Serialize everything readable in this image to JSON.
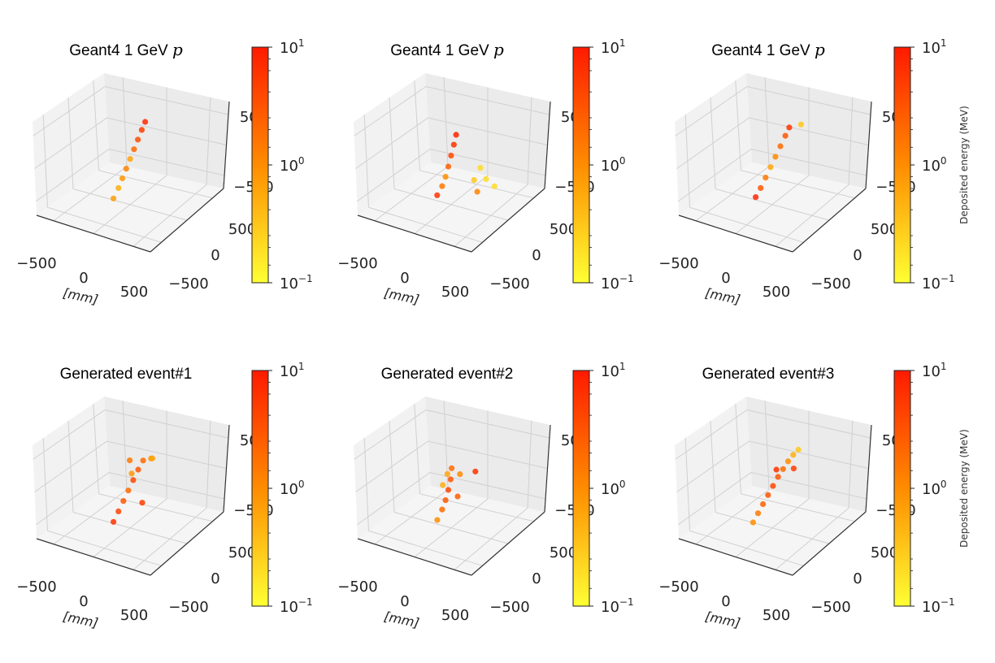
{
  "chart_data": [
    {
      "type": "scatter3d",
      "title": "Geant4 1 GeV ",
      "title_symbol": "p",
      "ticks": {
        "x": [
          "−500",
          "0",
          "500"
        ],
        "y": [
          "−500",
          "0",
          "500"
        ],
        "z": [
          "−500",
          "500"
        ]
      },
      "xlabel": "[mm]",
      "colorbar": {
        "scale": "log",
        "range": [
          0.1,
          10
        ],
        "ticks": [
          "10",
          "10",
          "10"
        ],
        "exponents": [
          "1",
          "0",
          "−1"
        ],
        "label": ""
      },
      "points": [
        {
          "x": 0,
          "y": -300,
          "z": -400,
          "e": 0.7
        },
        {
          "x": 0,
          "y": -200,
          "z": -300,
          "e": 0.5
        },
        {
          "x": 0,
          "y": -120,
          "z": -200,
          "e": 0.8
        },
        {
          "x": 0,
          "y": -40,
          "z": -100,
          "e": 1.2
        },
        {
          "x": 0,
          "y": 40,
          "z": 0,
          "e": 0.6
        },
        {
          "x": 0,
          "y": 120,
          "z": 100,
          "e": 2.0
        },
        {
          "x": 0,
          "y": 200,
          "z": 200,
          "e": 3.5
        },
        {
          "x": 0,
          "y": 280,
          "z": 300,
          "e": 5.0
        },
        {
          "x": 0,
          "y": 350,
          "z": 380,
          "e": 7.0
        }
      ]
    },
    {
      "type": "scatter3d",
      "title": "Geant4 1 GeV ",
      "title_symbol": "p",
      "ticks": {
        "x": [
          "−500",
          "0",
          "500"
        ],
        "y": [
          "−500",
          "0",
          "500"
        ],
        "z": [
          "−500",
          "500"
        ]
      },
      "xlabel": "[mm]",
      "colorbar": {
        "scale": "log",
        "range": [
          0.1,
          10
        ],
        "ticks": [
          "10",
          "10",
          "10"
        ],
        "exponents": [
          "1",
          "0",
          "−1"
        ],
        "label": ""
      },
      "points": [
        {
          "x": 0,
          "y": -250,
          "z": -380,
          "e": 6.0
        },
        {
          "x": 0,
          "y": -150,
          "z": -300,
          "e": 1.5
        },
        {
          "x": 0,
          "y": -80,
          "z": -200,
          "e": 1.0
        },
        {
          "x": 0,
          "y": -20,
          "z": -80,
          "e": 2.5
        },
        {
          "x": 0,
          "y": 40,
          "z": 50,
          "e": 4.0
        },
        {
          "x": 0,
          "y": 100,
          "z": 180,
          "e": 6.0
        },
        {
          "x": 0,
          "y": 150,
          "z": 300,
          "e": 8.0
        },
        {
          "x": 200,
          "y": 150,
          "z": -300,
          "e": 0.3
        },
        {
          "x": 250,
          "y": 300,
          "z": -350,
          "e": 0.2
        },
        {
          "x": 350,
          "y": 300,
          "z": -420,
          "e": 0.2
        },
        {
          "x": 150,
          "y": 350,
          "z": -250,
          "e": 0.2
        },
        {
          "x": 300,
          "y": 50,
          "z": -380,
          "e": 1.2
        }
      ]
    },
    {
      "type": "scatter3d",
      "title": "Geant4 1 GeV ",
      "title_symbol": "p",
      "ticks": {
        "x": [
          "−500",
          "0",
          "500"
        ],
        "y": [
          "−500",
          "0",
          "500"
        ],
        "z": [
          "−500",
          "500"
        ]
      },
      "xlabel": "[mm]",
      "colorbar": {
        "scale": "log",
        "range": [
          0.1,
          10
        ],
        "ticks": [
          "10",
          "10",
          "10"
        ],
        "exponents": [
          "1",
          "0",
          "−1"
        ],
        "label": "Deposited energy (MeV)"
      },
      "points": [
        {
          "x": 0,
          "y": -300,
          "z": -380,
          "e": 8.0
        },
        {
          "x": 0,
          "y": -200,
          "z": -300,
          "e": 3.0
        },
        {
          "x": 0,
          "y": -100,
          "z": -200,
          "e": 1.5
        },
        {
          "x": 0,
          "y": 0,
          "z": -100,
          "e": 0.6
        },
        {
          "x": 0,
          "y": 100,
          "z": 0,
          "e": 1.0
        },
        {
          "x": 0,
          "y": 200,
          "z": 100,
          "e": 2.0
        },
        {
          "x": 0,
          "y": 300,
          "z": 200,
          "e": 3.0
        },
        {
          "x": 0,
          "y": 380,
          "z": 280,
          "e": 6.0
        },
        {
          "x": 0,
          "y": 600,
          "z": 200,
          "e": 0.3
        }
      ]
    },
    {
      "type": "scatter3d",
      "title": "Generated event#1",
      "title_symbol": "",
      "ticks": {
        "x": [
          "−500",
          "0",
          "500"
        ],
        "y": [
          "−500",
          "0",
          "500"
        ],
        "z": [
          "−500",
          "500"
        ]
      },
      "xlabel": "[mm]",
      "colorbar": {
        "scale": "log",
        "range": [
          0.1,
          10
        ],
        "ticks": [
          "10",
          "10",
          "10"
        ],
        "exponents": [
          "1",
          "0",
          "−1"
        ],
        "label": ""
      },
      "points": [
        {
          "x": 0,
          "y": -300,
          "z": -400,
          "e": 6.0
        },
        {
          "x": 0,
          "y": -200,
          "z": -300,
          "e": 4.0
        },
        {
          "x": 0,
          "y": -100,
          "z": -200,
          "e": 3.0
        },
        {
          "x": 0,
          "y": 0,
          "z": -100,
          "e": 2.0
        },
        {
          "x": 0,
          "y": 100,
          "z": 0,
          "e": 4.0
        },
        {
          "x": 0,
          "y": 200,
          "z": 100,
          "e": 3.0
        },
        {
          "x": 0,
          "y": 300,
          "z": 180,
          "e": 2.0
        },
        {
          "x": 100,
          "y": 300,
          "z": 250,
          "e": 1.0
        },
        {
          "x": 150,
          "y": 250,
          "z": 300,
          "e": 0.6
        },
        {
          "x": -100,
          "y": 200,
          "z": 200,
          "e": 1.5
        },
        {
          "x": 100,
          "y": 100,
          "z": -300,
          "e": 5.0
        },
        {
          "x": -50,
          "y": 150,
          "z": 50,
          "e": 0.8
        }
      ]
    },
    {
      "type": "scatter3d",
      "title": "Generated event#2",
      "title_symbol": "",
      "ticks": {
        "x": [
          "−500",
          "0",
          "500"
        ],
        "y": [
          "−500",
          "0",
          "500"
        ],
        "z": [
          "−500",
          "500"
        ]
      },
      "xlabel": "[mm]",
      "colorbar": {
        "scale": "log",
        "range": [
          0.1,
          10
        ],
        "ticks": [
          "10",
          "10",
          "10"
        ],
        "exponents": [
          "1",
          "0",
          "−1"
        ],
        "label": ""
      },
      "points": [
        {
          "x": 0,
          "y": -250,
          "z": -400,
          "e": 1.0
        },
        {
          "x": 0,
          "y": -150,
          "z": -300,
          "e": 2.0
        },
        {
          "x": 0,
          "y": -80,
          "z": -200,
          "e": 3.0
        },
        {
          "x": 0,
          "y": -20,
          "z": -80,
          "e": 4.0
        },
        {
          "x": 0,
          "y": 30,
          "z": 50,
          "e": 3.0
        },
        {
          "x": 0,
          "y": 60,
          "z": 200,
          "e": 2.0
        },
        {
          "x": 100,
          "y": 60,
          "z": 150,
          "e": 1.0
        },
        {
          "x": -50,
          "y": 50,
          "z": 100,
          "e": 0.6
        },
        {
          "x": 200,
          "y": 200,
          "z": 150,
          "e": 6.0
        },
        {
          "x": 100,
          "y": 0,
          "z": -150,
          "e": 2.5
        },
        {
          "x": -80,
          "y": 0,
          "z": -50,
          "e": 0.5
        }
      ]
    },
    {
      "type": "scatter3d",
      "title": "Generated event#3",
      "title_symbol": "",
      "ticks": {
        "x": [
          "−500",
          "0",
          "500"
        ],
        "y": [
          "−500",
          "0",
          "500"
        ],
        "z": [
          "−500",
          "500"
        ]
      },
      "xlabel": "[mm]",
      "colorbar": {
        "scale": "log",
        "range": [
          0.1,
          10
        ],
        "ticks": [
          "10",
          "10",
          "10"
        ],
        "exponents": [
          "1",
          "0",
          "−1"
        ],
        "label": "Deposited energy (MeV)"
      },
      "points": [
        {
          "x": 0,
          "y": -350,
          "z": -380,
          "e": 1.0
        },
        {
          "x": 0,
          "y": -250,
          "z": -300,
          "e": 1.5
        },
        {
          "x": 0,
          "y": -150,
          "z": -220,
          "e": 2.5
        },
        {
          "x": 0,
          "y": -50,
          "z": -140,
          "e": 3.0
        },
        {
          "x": 0,
          "y": 50,
          "z": -60,
          "e": 4.0
        },
        {
          "x": 0,
          "y": 150,
          "z": 20,
          "e": 3.0
        },
        {
          "x": 0,
          "y": 250,
          "z": 80,
          "e": 2.0
        },
        {
          "x": 0,
          "y": 350,
          "z": 140,
          "e": 1.0
        },
        {
          "x": 0,
          "y": 450,
          "z": 180,
          "e": 0.5
        },
        {
          "x": 0,
          "y": 550,
          "z": 200,
          "e": 0.3
        },
        {
          "x": 100,
          "y": 300,
          "z": 100,
          "e": 5.0
        },
        {
          "x": -50,
          "y": 200,
          "z": 80,
          "e": 6.0
        }
      ]
    }
  ]
}
